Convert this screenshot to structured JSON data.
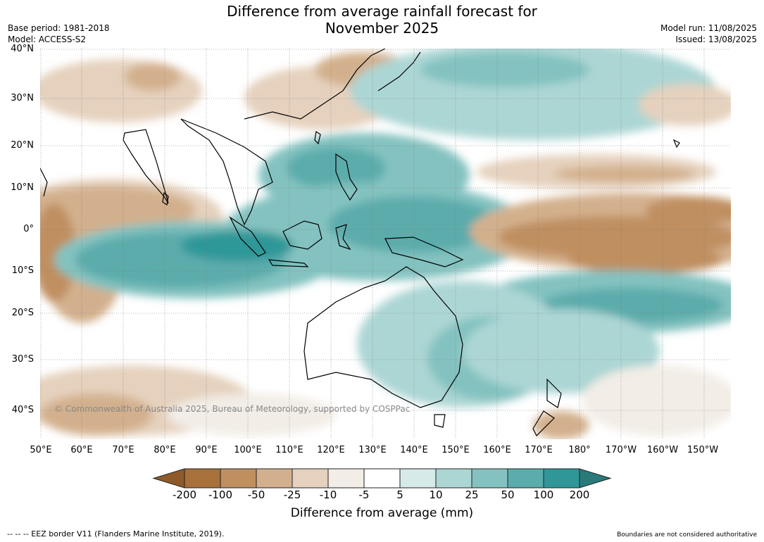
{
  "title_line1": "Difference from average rainfall forecast for",
  "title_line2": "November 2025",
  "base_period": "Base period: 1981-2018",
  "model": "Model: ACCESS-S2",
  "model_run": "Model run: 11/08/2025",
  "issued": "Issued: 13/08/2025",
  "lat_labels": [
    "40°N",
    "30°N",
    "20°N",
    "10°N",
    "0°",
    "10°S",
    "20°S",
    "30°S",
    "40°S"
  ],
  "lon_labels": [
    "50°E",
    "60°E",
    "70°E",
    "80°E",
    "90°E",
    "100°E",
    "110°E",
    "120°E",
    "130°E",
    "140°E",
    "150°E",
    "160°E",
    "170°E",
    "180°",
    "170°W",
    "160°W",
    "150°W"
  ],
  "copyright": "© Commonwealth of Australia 2025, Bureau of Meteorology, supported by COSPPac",
  "colorbar": {
    "ticks": [
      "-200",
      "-100",
      "-50",
      "-25",
      "-10",
      "-5",
      "5",
      "10",
      "25",
      "50",
      "100",
      "200"
    ],
    "colors": [
      "#a8703a",
      "#bf8f60",
      "#d3b08d",
      "#e5d1bd",
      "#f2ede6",
      "#ffffff",
      "#d6eae8",
      "#acd6d4",
      "#83c2c0",
      "#5bacac",
      "#2f9798"
    ],
    "under_color": "#8f5a2a",
    "over_color": "#2a7a7a"
  },
  "colorbar_label": "Difference from average (mm)",
  "footer_left": "--  --  -- EEZ border V11 (Flanders Marine Institute, 2019).",
  "footer_right": "Boundaries are not considered authoritative"
}
